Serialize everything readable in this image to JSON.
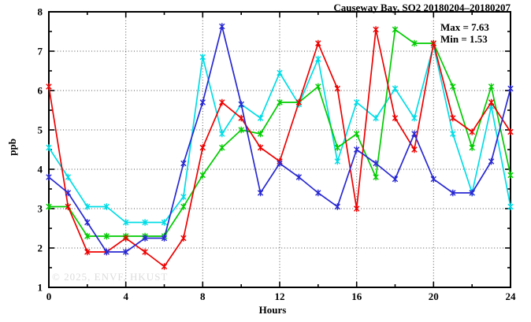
{
  "chart_data": {
    "type": "line",
    "title": "Causeway Bay, SO2 20180204–20180207",
    "xlabel": "Hours",
    "ylabel": "ppb",
    "xlim": [
      0,
      24
    ],
    "ylim": [
      1,
      8
    ],
    "xticks": [
      0,
      4,
      8,
      12,
      16,
      20,
      24
    ],
    "yticks": [
      1,
      2,
      3,
      4,
      5,
      6,
      7,
      8
    ],
    "x_minor_step": 2,
    "y_minor_step": 0.5,
    "grid": "dotted",
    "legend_position": "none",
    "annotations": {
      "max_label": "Max = 7.63",
      "min_label": "Min = 1.53"
    },
    "watermark": "© 2025, ENVF, HKUST",
    "x": [
      0,
      1,
      2,
      3,
      4,
      5,
      6,
      7,
      8,
      9,
      10,
      11,
      12,
      13,
      14,
      15,
      16,
      17,
      18,
      19,
      20,
      21,
      22,
      23,
      24
    ],
    "series": [
      {
        "name": "cyan",
        "color": "#00dde6",
        "values": [
          4.55,
          3.8,
          3.05,
          3.05,
          2.65,
          2.65,
          2.65,
          3.3,
          6.85,
          4.9,
          5.65,
          5.3,
          6.45,
          5.65,
          6.8,
          4.2,
          5.7,
          5.3,
          6.05,
          5.3,
          7.15,
          4.9,
          3.4,
          5.6,
          3.05
        ]
      },
      {
        "name": "green",
        "color": "#00cc00",
        "values": [
          3.05,
          3.05,
          2.3,
          2.3,
          2.3,
          2.3,
          2.3,
          3.05,
          3.85,
          4.55,
          5.0,
          4.9,
          5.7,
          5.7,
          6.1,
          4.55,
          4.9,
          3.8,
          7.55,
          7.2,
          7.2,
          6.1,
          4.55,
          6.1,
          3.85
        ]
      },
      {
        "name": "red",
        "color": "#ee0000",
        "values": [
          6.1,
          3.05,
          1.9,
          1.9,
          2.25,
          1.9,
          1.53,
          2.25,
          4.55,
          5.7,
          5.3,
          4.55,
          4.2,
          5.7,
          7.2,
          6.05,
          3.0,
          7.55,
          5.3,
          4.5,
          7.2,
          5.3,
          4.95,
          5.7,
          4.95
        ]
      },
      {
        "name": "blue",
        "color": "#2828d2",
        "values": [
          3.8,
          3.4,
          2.65,
          1.9,
          1.9,
          2.25,
          2.25,
          4.15,
          5.7,
          7.63,
          5.65,
          3.4,
          4.15,
          3.8,
          3.4,
          3.05,
          4.5,
          4.15,
          3.75,
          4.9,
          3.75,
          3.4,
          3.4,
          4.2,
          6.05
        ]
      }
    ]
  }
}
